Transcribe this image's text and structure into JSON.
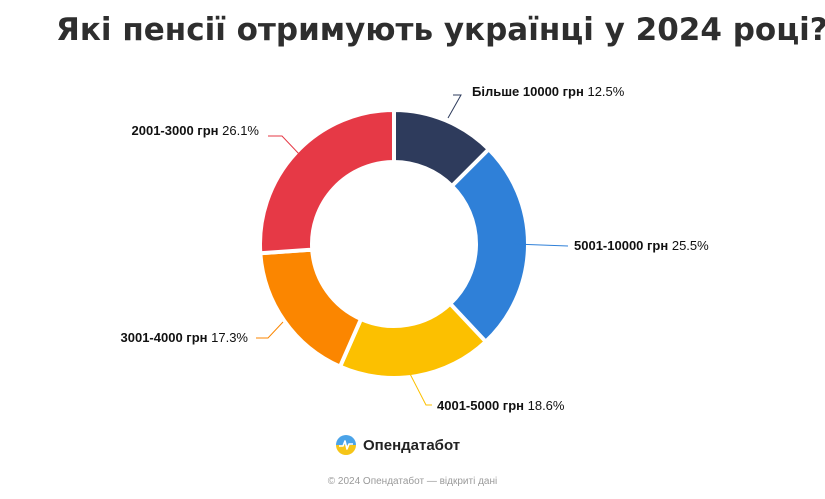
{
  "title": "Які пенсії отримують українці у 2024 році?",
  "brand": {
    "name": "Опендатабот",
    "logo_icon": "opendatabot-logo-icon"
  },
  "footer": "© 2024 Опендатабот — відкриті дані",
  "colors": {
    "slice1": "#2e3b5c",
    "slice2": "#2f80d8",
    "slice3": "#fcc000",
    "slice4": "#fb8600",
    "slice5": "#e63946"
  },
  "chart_data": {
    "type": "pie",
    "donut": true,
    "slices": [
      {
        "label": "Більше 10000 грн",
        "value": 12.5,
        "value_label": "12.5%",
        "color": "#2e3b5c"
      },
      {
        "label": "5001-10000 грн",
        "value": 25.5,
        "value_label": "25.5%",
        "color": "#2f80d8"
      },
      {
        "label": "4001-5000 грн",
        "value": 18.6,
        "value_label": "18.6%",
        "color": "#fcc000"
      },
      {
        "label": "3001-4000 грн",
        "value": 17.3,
        "value_label": "17.3%",
        "color": "#fb8600"
      },
      {
        "label": "2001-3000 грн",
        "value": 26.1,
        "value_label": "26.1%",
        "color": "#e63946"
      }
    ]
  }
}
